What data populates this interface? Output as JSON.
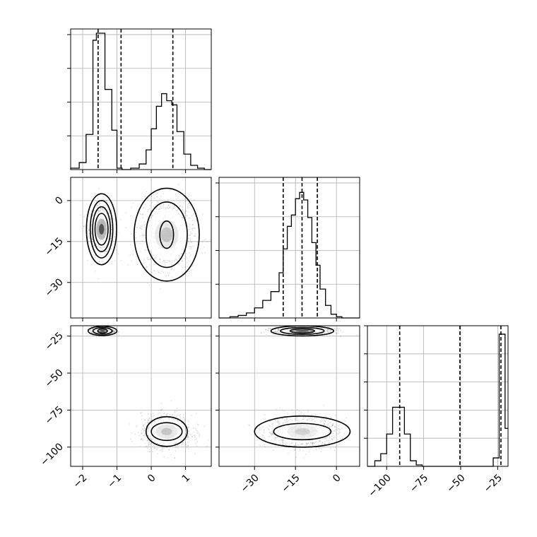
{
  "chart_data": {
    "type": "corner",
    "parameters": [
      {
        "id": "p0",
        "range": [
          -2.35,
          1.75
        ],
        "ticks": [
          -2,
          -1,
          0,
          1
        ],
        "tick_labels": [
          "−2",
          "−1",
          "0",
          "1"
        ],
        "hist_bin_edges": [
          -2.35,
          -2.1,
          -1.9,
          -1.7,
          -1.6,
          -1.5,
          -1.35,
          -1.15,
          -1.0,
          -0.85,
          -0.6,
          -0.35,
          -0.15,
          0.0,
          0.15,
          0.3,
          0.45,
          0.6,
          0.75,
          0.95,
          1.15,
          1.35,
          1.55,
          1.75
        ],
        "hist_counts": [
          0.01,
          0.05,
          0.25,
          0.92,
          0.97,
          0.97,
          0.57,
          0.28,
          0.01,
          0.0,
          0.01,
          0.04,
          0.14,
          0.29,
          0.45,
          0.54,
          0.49,
          0.46,
          0.27,
          0.11,
          0.03,
          0.01,
          0.0
        ],
        "hist_ylim": [
          0,
          1.0
        ],
        "hist_grid_fractions": [
          0.24,
          0.48,
          0.72,
          0.96
        ],
        "quantiles": [
          -1.55,
          -0.88,
          0.63
        ]
      },
      {
        "id": "p1",
        "range": [
          -43,
          8.5
        ],
        "ticks": [
          -30,
          -15,
          0
        ],
        "tick_labels": [
          "−30",
          "−15",
          "0"
        ],
        "hist_bin_edges": [
          -43,
          -39,
          -36,
          -33,
          -30,
          -27,
          -24,
          -21,
          -19.5,
          -18,
          -16.5,
          -15,
          -13.5,
          -12,
          -10.5,
          -9,
          -7.5,
          -6,
          -4,
          -2,
          0,
          2,
          5,
          8.5
        ],
        "hist_counts": [
          0.0,
          0.01,
          0.02,
          0.04,
          0.08,
          0.14,
          0.21,
          0.36,
          0.55,
          0.73,
          0.82,
          0.95,
          1.0,
          0.94,
          0.8,
          0.6,
          0.42,
          0.23,
          0.1,
          0.03,
          0.01,
          0.0,
          0.0
        ],
        "hist_ylim": [
          0,
          1.12
        ],
        "hist_grid_fractions": [
          0.24,
          0.48,
          0.72,
          0.96
        ],
        "quantiles": [
          -19.5,
          -12.6,
          -7.0
        ]
      },
      {
        "id": "p2",
        "range": [
          -113,
          -18
        ],
        "ticks": [
          -100,
          -75,
          -50,
          -25
        ],
        "tick_labels": [
          "−100",
          "−75",
          "−50",
          "−25"
        ],
        "hist_bin_edges": [
          -113,
          -108,
          -104,
          -100,
          -96,
          -92,
          -88,
          -84,
          -80,
          -76,
          -72,
          -68,
          -28,
          -24,
          -20,
          -18
        ],
        "hist_counts": [
          0.0,
          0.04,
          0.09,
          0.23,
          0.42,
          0.42,
          0.23,
          0.04,
          0.01,
          0.0,
          0.0,
          0.0,
          0.06,
          0.94,
          0.27
        ],
        "hist_ylim": [
          0,
          1.0
        ],
        "hist_grid_fractions": [
          0.2,
          0.4,
          0.6,
          0.8,
          1.0
        ],
        "quantiles": [
          -91.2,
          -50.5,
          -22.8
        ]
      }
    ],
    "scatter_panels": [
      {
        "x": "p0",
        "y": "p1",
        "clusters": [
          {
            "cx": -1.45,
            "cy": -10.5,
            "sx": 0.17,
            "sy": 4.3,
            "n": 700,
            "peak": 0.75,
            "levels": [
              [
                0.19,
                5.8
              ],
              [
                0.26,
                8.2
              ],
              [
                0.33,
                10.5
              ],
              [
                0.44,
                13.0
              ]
            ]
          },
          {
            "cx": 0.45,
            "cy": -12.5,
            "sx": 0.38,
            "sy": 6.0,
            "n": 950,
            "peak": 0.22,
            "levels": [
              [
                0.2,
                5.0
              ],
              [
                0.6,
                12.0
              ],
              [
                0.95,
                17.0
              ]
            ]
          }
        ]
      },
      {
        "x": "p0",
        "y": "p2",
        "clusters": [
          {
            "cx": -1.42,
            "cy": -21.5,
            "sx": 0.16,
            "sy": 1.3,
            "n": 500,
            "peak": 0.85,
            "levels": [
              [
                0.14,
                1.4
              ],
              [
                0.28,
                2.2
              ],
              [
                0.42,
                3.1
              ]
            ]
          },
          {
            "cx": 0.45,
            "cy": -89.5,
            "sx": 0.35,
            "sy": 5.5,
            "n": 950,
            "peak": 0.2,
            "levels": [
              [
                0.45,
                6.0
              ],
              [
                0.6,
                10.0
              ]
            ]
          }
        ]
      },
      {
        "x": "p1",
        "y": "p2",
        "clusters": [
          {
            "cx": -12.5,
            "cy": -21.5,
            "sx": 5.2,
            "sy": 1.2,
            "n": 700,
            "peak": 0.85,
            "levels": [
              [
                4.5,
                1.4
              ],
              [
                8.0,
                2.3
              ],
              [
                11.5,
                3.4
              ]
            ]
          },
          {
            "cx": -12.5,
            "cy": -89.5,
            "sx": 6.2,
            "sy": 5.0,
            "n": 1100,
            "peak": 0.15,
            "levels": [
              [
                10.5,
                5.5
              ],
              [
                17.5,
                10.5
              ]
            ]
          }
        ]
      }
    ],
    "grid": true
  }
}
